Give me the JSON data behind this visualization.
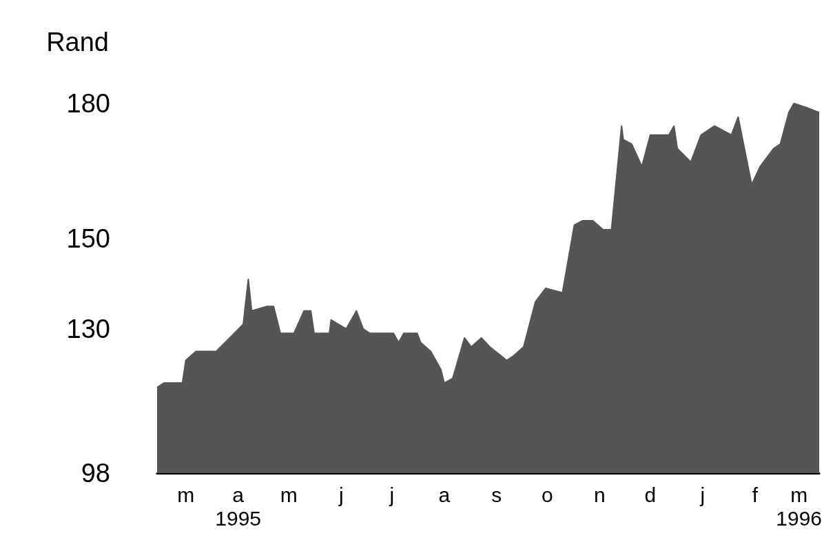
{
  "chart_data": {
    "type": "area",
    "ylabel": "Rand",
    "color": "#555555",
    "x": [
      "1995-02-26",
      "1995-03-02",
      "1995-03-13",
      "1995-03-15",
      "1995-03-21",
      "1995-04-02",
      "1995-04-10",
      "1995-04-18",
      "1995-04-21",
      "1995-04-23",
      "1995-05-02",
      "1995-05-06",
      "1995-05-10",
      "1995-05-18",
      "1995-05-24",
      "1995-05-28",
      "1995-05-30",
      "1995-06-08",
      "1995-06-09",
      "1995-06-18",
      "1995-06-24",
      "1995-06-28",
      "1995-07-02",
      "1995-07-16",
      "1995-07-19",
      "1995-07-22",
      "1995-07-30",
      "1995-08-01",
      "1995-08-07",
      "1995-08-13",
      "1995-08-15",
      "1995-08-20",
      "1995-08-27",
      "1995-08-31",
      "1995-09-06",
      "1995-09-11",
      "1995-09-21",
      "1995-09-25",
      "1995-10-01",
      "1995-10-08",
      "1995-10-14",
      "1995-10-24",
      "1995-10-31",
      "1995-11-05",
      "1995-11-11",
      "1995-11-17",
      "1995-11-22",
      "1995-11-28",
      "1995-11-29",
      "1995-12-04",
      "1995-12-10",
      "1995-12-15",
      "1995-12-26",
      "1995-12-29",
      "1995-12-31",
      "1996-01-08",
      "1996-01-14",
      "1996-01-22",
      "1996-02-01",
      "1996-02-05",
      "1996-02-13",
      "1996-02-18",
      "1996-02-26",
      "1996-03-01",
      "1996-03-06",
      "1996-03-09",
      "1996-03-17",
      "1996-03-24"
    ],
    "values": [
      117,
      118,
      118,
      123,
      125,
      125,
      128,
      131,
      141,
      134,
      135,
      135,
      129,
      129,
      134,
      134,
      129,
      129,
      132,
      130,
      134,
      130,
      129,
      129,
      127,
      129,
      129,
      127,
      125,
      121,
      118,
      119,
      128,
      126,
      128,
      126,
      123,
      124,
      126,
      136,
      139,
      138,
      153,
      154,
      154,
      152,
      152,
      175,
      172,
      171,
      166,
      173,
      173,
      175,
      170,
      167,
      173,
      175,
      173,
      177,
      162,
      166,
      170,
      171,
      178,
      180,
      179,
      178
    ],
    "xlim": [
      "1995-02-26",
      "1996-03-24"
    ],
    "xticks": [
      {
        "value": "1995-03-15",
        "label": "m"
      },
      {
        "value": "1995-04-15",
        "label": "a\n1995"
      },
      {
        "value": "1995-05-15",
        "label": "m"
      },
      {
        "value": "1995-06-15",
        "label": "j"
      },
      {
        "value": "1995-07-15",
        "label": "j"
      },
      {
        "value": "1995-08-15",
        "label": "a"
      },
      {
        "value": "1995-09-15",
        "label": "s"
      },
      {
        "value": "1995-10-15",
        "label": "o"
      },
      {
        "value": "1995-11-15",
        "label": "n"
      },
      {
        "value": "1995-12-15",
        "label": "d"
      },
      {
        "value": "1996-01-15",
        "label": "j"
      },
      {
        "value": "1996-02-15",
        "label": "f"
      },
      {
        "value": "1996-03-12",
        "label": "m\n1996"
      }
    ],
    "ylim": [
      98,
      180
    ],
    "yticks": [
      98,
      130,
      150,
      180
    ],
    "grid": false,
    "marker": "none"
  }
}
